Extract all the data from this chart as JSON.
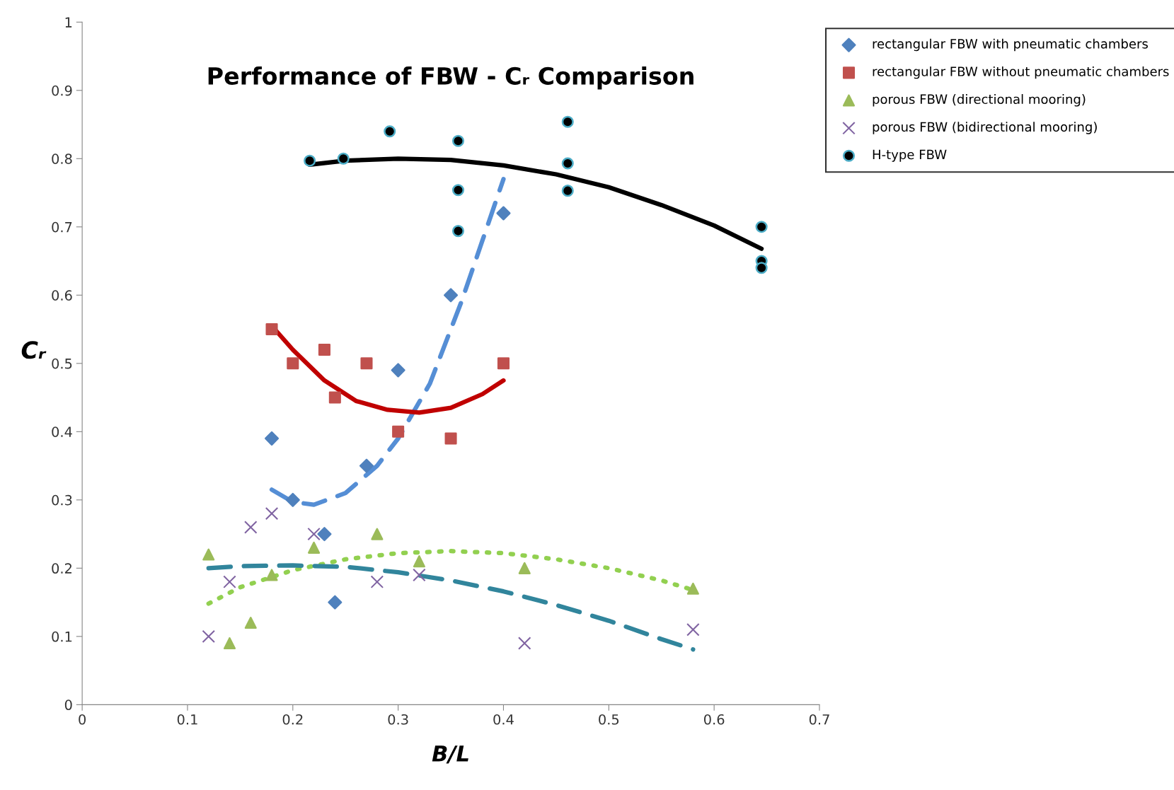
{
  "chart_data": {
    "type": "scatter",
    "title": "Performance of FBW - Cᵣ Comparison",
    "xlabel": "B/L",
    "ylabel": "Cᵣ",
    "xlim": [
      0,
      0.7
    ],
    "xticks": [
      0,
      0.1,
      0.2,
      0.3,
      0.4,
      0.5,
      0.6,
      0.7
    ],
    "ylim": [
      0,
      1
    ],
    "yticks": [
      0,
      0.1,
      0.2,
      0.3,
      0.4,
      0.5,
      0.6,
      0.7,
      0.8,
      0.9,
      1
    ],
    "grid": false,
    "legend": "top right",
    "series": [
      {
        "name": "rectangular FBW with pneumatic chambers",
        "color": "#4f81bd",
        "marker": "diamond",
        "x": [
          0.18,
          0.2,
          0.23,
          0.24,
          0.27,
          0.3,
          0.35,
          0.4
        ],
        "values": [
          0.39,
          0.3,
          0.25,
          0.15,
          0.35,
          0.49,
          0.6,
          0.72
        ]
      },
      {
        "name": "rectangular FBW without pneumatic chambers",
        "color": "#c0504d",
        "marker": "square",
        "x": [
          0.18,
          0.2,
          0.23,
          0.24,
          0.27,
          0.3,
          0.35,
          0.4
        ],
        "values": [
          0.55,
          0.5,
          0.52,
          0.45,
          0.5,
          0.4,
          0.39,
          0.5
        ]
      },
      {
        "name": "porous FBW (directional mooring)",
        "color": "#9bbb59",
        "marker": "triangle",
        "x": [
          0.12,
          0.14,
          0.16,
          0.18,
          0.22,
          0.28,
          0.32,
          0.42,
          0.58
        ],
        "values": [
          0.22,
          0.09,
          0.12,
          0.19,
          0.23,
          0.25,
          0.21,
          0.2,
          0.17
        ]
      },
      {
        "name": "porous FBW (bidirectional mooring)",
        "color": "#8064a2",
        "marker": "cross",
        "x": [
          0.12,
          0.14,
          0.16,
          0.18,
          0.22,
          0.28,
          0.32,
          0.42,
          0.58
        ],
        "values": [
          0.1,
          0.18,
          0.26,
          0.28,
          0.25,
          0.18,
          0.19,
          0.09,
          0.11
        ]
      },
      {
        "name": "H-type FBW",
        "color": "#000000",
        "marker": "circle",
        "x": [
          0.216,
          0.248,
          0.292,
          0.357,
          0.357,
          0.357,
          0.461,
          0.461,
          0.461,
          0.645,
          0.645,
          0.645
        ],
        "values": [
          0.797,
          0.8,
          0.84,
          0.826,
          0.754,
          0.694,
          0.854,
          0.793,
          0.753,
          0.7,
          0.65,
          0.64
        ]
      },
      {
        "type": "line",
        "color": "#000000",
        "line_style": "solid",
        "x": [
          0.216,
          0.25,
          0.3,
          0.35,
          0.4,
          0.45,
          0.5,
          0.55,
          0.6,
          0.645
        ],
        "values": [
          0.791,
          0.797,
          0.8,
          0.798,
          0.79,
          0.777,
          0.758,
          0.732,
          0.702,
          0.668
        ]
      },
      {
        "type": "line",
        "color": "#558ed5",
        "line_style": "dashed",
        "x": [
          0.18,
          0.2,
          0.22,
          0.25,
          0.28,
          0.3,
          0.33,
          0.36,
          0.38,
          0.4
        ],
        "values": [
          0.315,
          0.297,
          0.293,
          0.31,
          0.35,
          0.39,
          0.47,
          0.59,
          0.68,
          0.77
        ]
      },
      {
        "type": "line",
        "color": "#c00000",
        "line_style": "solid",
        "x": [
          0.18,
          0.2,
          0.23,
          0.26,
          0.29,
          0.32,
          0.35,
          0.38,
          0.4
        ],
        "values": [
          0.555,
          0.52,
          0.475,
          0.445,
          0.432,
          0.428,
          0.435,
          0.455,
          0.475
        ]
      },
      {
        "type": "line",
        "color": "#92d050",
        "line_style": "dotted",
        "x": [
          0.12,
          0.15,
          0.2,
          0.25,
          0.3,
          0.35,
          0.4,
          0.45,
          0.5,
          0.55,
          0.58
        ],
        "values": [
          0.148,
          0.172,
          0.197,
          0.213,
          0.222,
          0.225,
          0.222,
          0.213,
          0.2,
          0.182,
          0.168
        ]
      },
      {
        "type": "line",
        "color": "#31859c",
        "line_style": "dashed",
        "x": [
          0.12,
          0.15,
          0.2,
          0.25,
          0.3,
          0.35,
          0.4,
          0.45,
          0.5,
          0.55,
          0.58
        ],
        "values": [
          0.2,
          0.203,
          0.204,
          0.202,
          0.194,
          0.182,
          0.166,
          0.146,
          0.123,
          0.096,
          0.081
        ]
      }
    ]
  }
}
